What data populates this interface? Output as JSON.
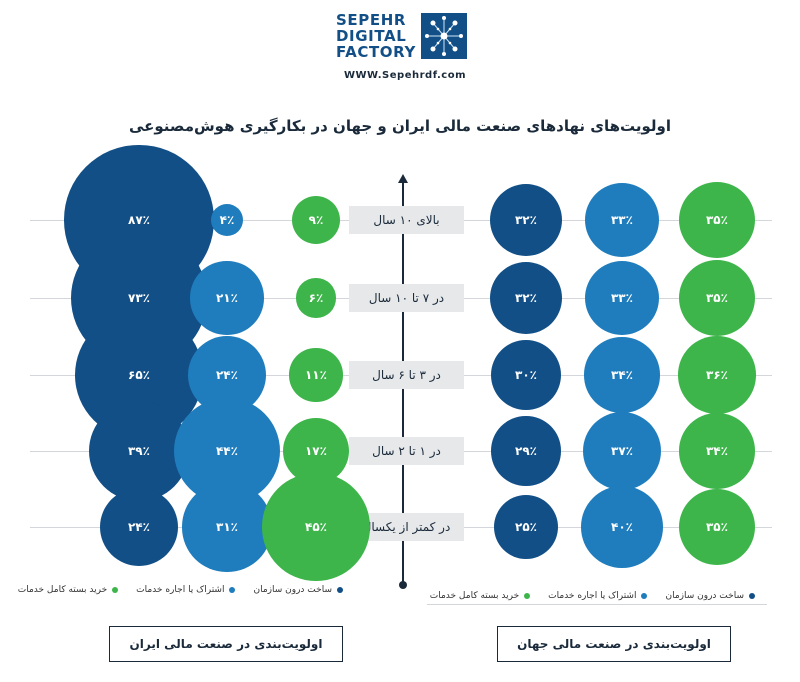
{
  "logo": {
    "lines": [
      "SEPEHR",
      "DIGITAL",
      "FACTORY"
    ],
    "url": "WWW.Sepehrdf.com"
  },
  "title": "اولویت‌های نهادهای صنعت مالی ایران و جهان در بکارگیری هوش‌مصنوعی",
  "colors": {
    "in_house": "#124f86",
    "share_rent": "#1f7dbd",
    "full_purchase": "#3db54a"
  },
  "legend": {
    "in_house": "ساخت درون سازمان",
    "share_rent": "اشتراک یا اجاره خدمات",
    "full_purchase": "خرید بسته کامل خدمات"
  },
  "footer": {
    "iran": "اولویت‌بندی در صنعت مالی ایران",
    "world": "اولویت‌بندی در صنعت مالی جهان"
  },
  "chart_data": [
    {
      "type": "bubble",
      "title": "اولویت‌بندی در صنعت مالی ایران",
      "categories": [
        "بالای ۱۰ سال",
        "در ۷ تا ۱۰ سال",
        "در ۳ تا ۶ سال",
        "در ۱ تا ۲ سال",
        "در کمتر از یکسال"
      ],
      "series": [
        {
          "name": "ساخت درون سازمان",
          "values": [
            87,
            73,
            65,
            39,
            24
          ],
          "labels": [
            "۸۷٪",
            "۷۳٪",
            "۶۵٪",
            "۳۹٪",
            "۲۴٪"
          ]
        },
        {
          "name": "اشتراک یا اجاره خدمات",
          "values": [
            4,
            21,
            24,
            44,
            31
          ],
          "labels": [
            "۴٪",
            "۲۱٪",
            "۲۴٪",
            "۴۴٪",
            "۳۱٪"
          ]
        },
        {
          "name": "خرید بسته کامل خدمات",
          "values": [
            9,
            6,
            11,
            17,
            45
          ],
          "labels": [
            "۹٪",
            "۶٪",
            "۱۱٪",
            "۱۷٪",
            "۴۵٪"
          ]
        }
      ]
    },
    {
      "type": "bubble",
      "title": "اولویت‌بندی در صنعت مالی جهان",
      "categories": [
        "بالای ۱۰ سال",
        "در ۷ تا ۱۰ سال",
        "در ۳ تا ۶ سال",
        "در ۱ تا ۲ سال",
        "در کمتر از یکسال"
      ],
      "series": [
        {
          "name": "ساخت درون سازمان",
          "values": [
            32,
            32,
            30,
            29,
            25
          ],
          "labels": [
            "۳۲٪",
            "۳۲٪",
            "۳۰٪",
            "۲۹٪",
            "۲۵٪"
          ]
        },
        {
          "name": "اشتراک یا اجاره خدمات",
          "values": [
            33,
            33,
            34,
            37,
            40
          ],
          "labels": [
            "۳۳٪",
            "۳۳٪",
            "۳۴٪",
            "۳۷٪",
            "۴۰٪"
          ]
        },
        {
          "name": "خرید بسته کامل خدمات",
          "values": [
            35,
            35,
            36,
            34,
            35
          ],
          "labels": [
            "۳۵٪",
            "۳۵٪",
            "۳۶٪",
            "۳۴٪",
            "۳۵٪"
          ]
        }
      ]
    }
  ]
}
